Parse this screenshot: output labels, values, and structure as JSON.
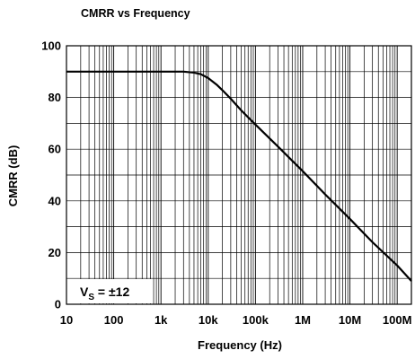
{
  "chart_data": {
    "type": "line",
    "title": "CMRR vs Frequency",
    "xlabel": "Frequency (Hz)",
    "ylabel": "CMRR (dB)",
    "x_scale": "log",
    "xlim": [
      10,
      200000000
    ],
    "ylim": [
      0,
      100
    ],
    "grid": true,
    "x_ticks": [
      10,
      100,
      1000,
      10000,
      100000,
      1000000,
      10000000,
      100000000
    ],
    "x_tick_labels": [
      "10",
      "100",
      "1k",
      "10k",
      "100k",
      "1M",
      "10M",
      "100M"
    ],
    "y_ticks": [
      0,
      20,
      40,
      60,
      80,
      100
    ],
    "y_tick_labels": [
      "0",
      "20",
      "40",
      "60",
      "80",
      "100"
    ],
    "annotation": {
      "base": "V",
      "subscript": "S",
      "text": " = ±12"
    },
    "series": [
      {
        "x": [
          10,
          100,
          1000,
          3000,
          5000,
          7000,
          10000,
          15000,
          20000,
          30000,
          50000,
          100000,
          300000,
          1000000,
          3000000,
          10000000,
          30000000,
          100000000,
          200000000
        ],
        "y": [
          90,
          90,
          90,
          90,
          89.6,
          89,
          87.5,
          85,
          82.8,
          79.5,
          75,
          69.5,
          61,
          51.5,
          42.5,
          33,
          24,
          15,
          9
        ]
      }
    ]
  }
}
